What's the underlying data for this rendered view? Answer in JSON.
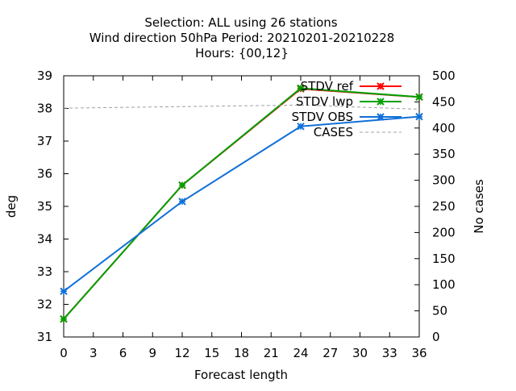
{
  "chart_data": {
    "type": "line",
    "title_lines": [
      "Selection: ALL using    26 stations",
      "Wind direction 50hPa   Period: 20210201-20210228",
      "Hours: {00,12}"
    ],
    "xlabel": "Forecast length",
    "ylabel": "deg",
    "y2label": "No cases",
    "xlim": [
      0,
      36
    ],
    "ylim": [
      31,
      39
    ],
    "y2lim": [
      0,
      500
    ],
    "x_ticks": [
      "0",
      "3",
      "6",
      "9",
      "12",
      "15",
      "18",
      "21",
      "24",
      "27",
      "30",
      "33",
      "36"
    ],
    "y_ticks": [
      "31",
      "32",
      "33",
      "34",
      "35",
      "36",
      "37",
      "38",
      "39"
    ],
    "y2_ticks": [
      "0",
      "50",
      "100",
      "150",
      "200",
      "250",
      "300",
      "350",
      "400",
      "450",
      "500"
    ],
    "grid": false,
    "legend_position": "top-right",
    "series": [
      {
        "name": "STDV ref",
        "color": "#ff0000",
        "marker": "x",
        "axis": "y",
        "x": [
          0,
          12,
          24,
          36
        ],
        "values": [
          31.55,
          35.65,
          38.6,
          38.35
        ]
      },
      {
        "name": "STDV lwp",
        "color": "#00a000",
        "marker": "x",
        "axis": "y",
        "x": [
          0,
          12,
          24,
          36
        ],
        "values": [
          31.55,
          35.65,
          38.62,
          38.35
        ]
      },
      {
        "name": "STDV OBS",
        "color": "#1070d8",
        "marker": "x",
        "axis": "y",
        "x": [
          0,
          12,
          24,
          36
        ],
        "values": [
          32.4,
          35.15,
          37.45,
          37.75
        ]
      },
      {
        "name": "CASES",
        "color": "#a0a0a0",
        "marker": "none",
        "dashed": true,
        "axis": "y2",
        "x": [
          0,
          12,
          24,
          36
        ],
        "values": [
          438,
          441,
          444,
          436
        ]
      }
    ]
  }
}
